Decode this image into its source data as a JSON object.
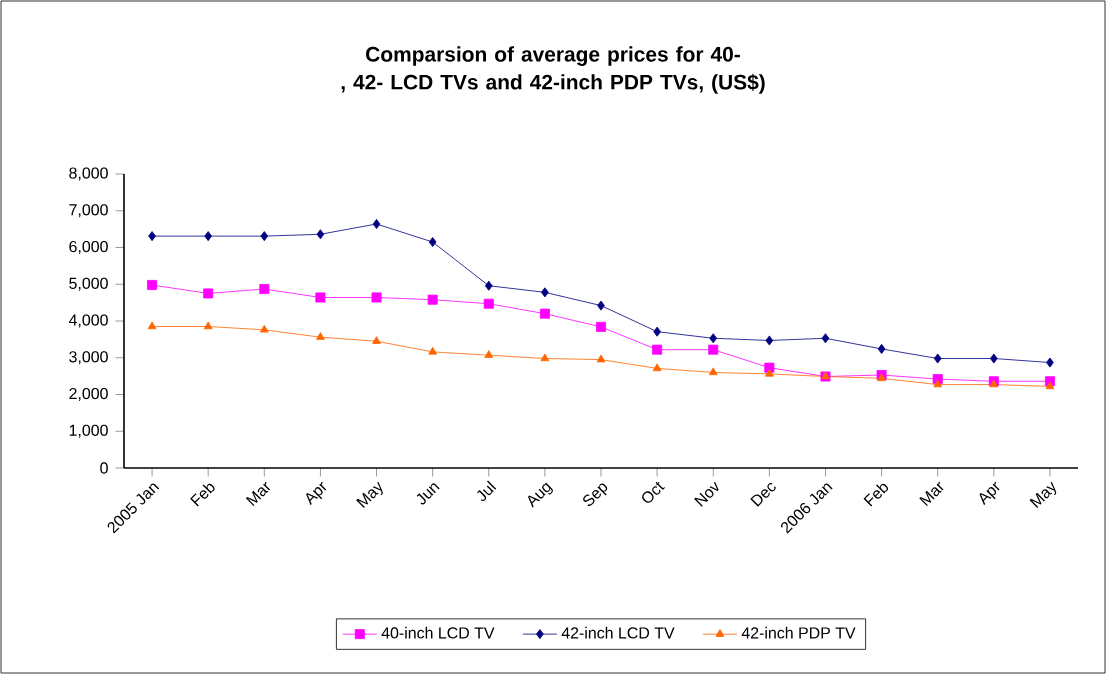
{
  "chart_data": {
    "type": "line",
    "title": "Comparsion of average prices for 40-, 42- LCD TVs and 42-inch PDP TVs, (US$)",
    "categories": [
      "2005 Jan",
      "Feb",
      "Mar",
      "Apr",
      "May",
      "Jun",
      "Jul",
      "Aug",
      "Sep",
      "Oct",
      "Nov",
      "Dec",
      "2006 Jan",
      "Feb",
      "Mar",
      "Apr",
      "May"
    ],
    "series": [
      {
        "name": "40-inch LCD TV",
        "color": "#ff00ff",
        "marker": "square",
        "values": [
          4980,
          4750,
          4870,
          4640,
          4640,
          4580,
          4470,
          4200,
          3840,
          3220,
          3220,
          2730,
          2490,
          2530,
          2420,
          2360,
          2360
        ]
      },
      {
        "name": "42-inch LCD TV",
        "color": "#000080",
        "marker": "diamond",
        "values": [
          6310,
          6310,
          6310,
          6360,
          6640,
          6150,
          4960,
          4780,
          4420,
          3710,
          3530,
          3470,
          3530,
          3240,
          2980,
          2980,
          2870
        ]
      },
      {
        "name": "42-inch PDP TV",
        "color": "#ff6600",
        "marker": "triangle",
        "values": [
          3850,
          3850,
          3760,
          3560,
          3450,
          3160,
          3070,
          2980,
          2950,
          2710,
          2600,
          2560,
          2490,
          2440,
          2270,
          2270,
          2220
        ]
      }
    ],
    "ylim": [
      0,
      8000
    ],
    "yticks": [
      {
        "value": 0,
        "label": "0"
      },
      {
        "value": 1000,
        "label": "1,000"
      },
      {
        "value": 2000,
        "label": "2,000"
      },
      {
        "value": 3000,
        "label": "3,000"
      },
      {
        "value": 4000,
        "label": "4,000"
      },
      {
        "value": 5000,
        "label": "5,000"
      },
      {
        "value": 6000,
        "label": "6,000"
      },
      {
        "value": 7000,
        "label": "7,000"
      },
      {
        "value": 8000,
        "label": "8,000"
      }
    ],
    "grid": false,
    "legend": "bottom"
  }
}
